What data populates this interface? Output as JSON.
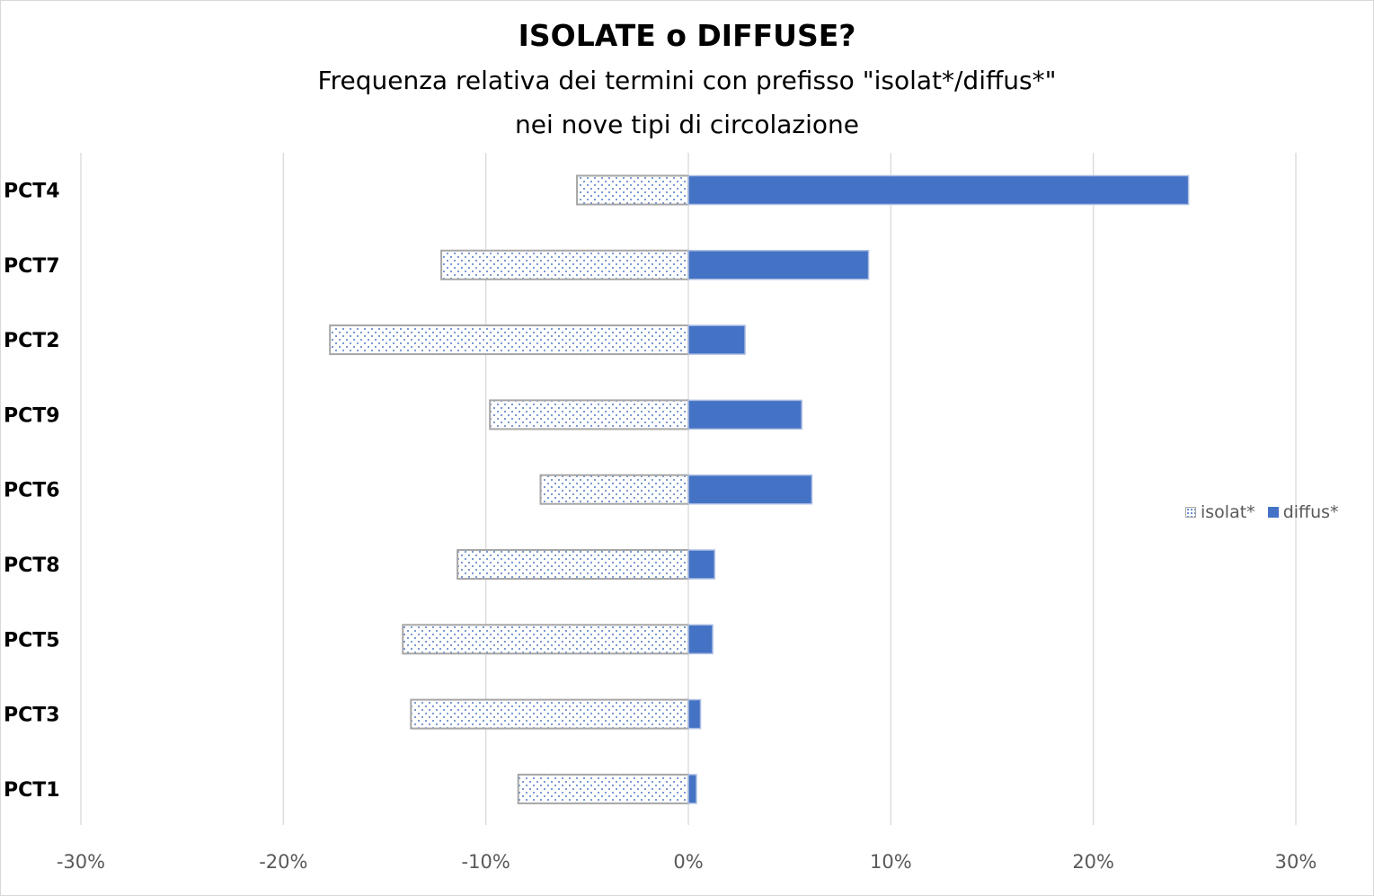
{
  "chart_data": {
    "type": "bar",
    "orientation": "horizontal",
    "title": "ISOLATE o DIFFUSE?",
    "subtitle_lines": [
      "Frequenza relativa dei termini con prefisso \"isolat*/diffus*\"",
      "nei nove tipi di circolazione"
    ],
    "categories": [
      "PCT4",
      "PCT7",
      "PCT2",
      "PCT9",
      "PCT6",
      "PCT8",
      "PCT5",
      "PCT3",
      "PCT1"
    ],
    "series": [
      {
        "name": "isolat*",
        "values": [
          -5.5,
          -12.2,
          -17.7,
          -9.8,
          -7.3,
          -11.4,
          -14.1,
          -13.7,
          -8.4
        ],
        "color": "#4472c4",
        "fill": "dotted",
        "border": "#a6a6a6"
      },
      {
        "name": "diffus*",
        "values": [
          24.7,
          8.9,
          2.8,
          5.6,
          6.1,
          1.3,
          1.2,
          0.6,
          0.4
        ],
        "color": "#4472c4",
        "fill": "solid"
      }
    ],
    "xlim": [
      -30,
      30
    ],
    "xticks": [
      -30,
      -20,
      -10,
      0,
      10,
      20,
      30
    ],
    "xtick_labels": [
      "-30%",
      "-20%",
      "-10%",
      "0%",
      "10%",
      "20%",
      "30%"
    ],
    "xlabel": "",
    "ylabel": "",
    "grid": "vertical",
    "gridline_color": "#d9d9d9",
    "legend": "right"
  }
}
